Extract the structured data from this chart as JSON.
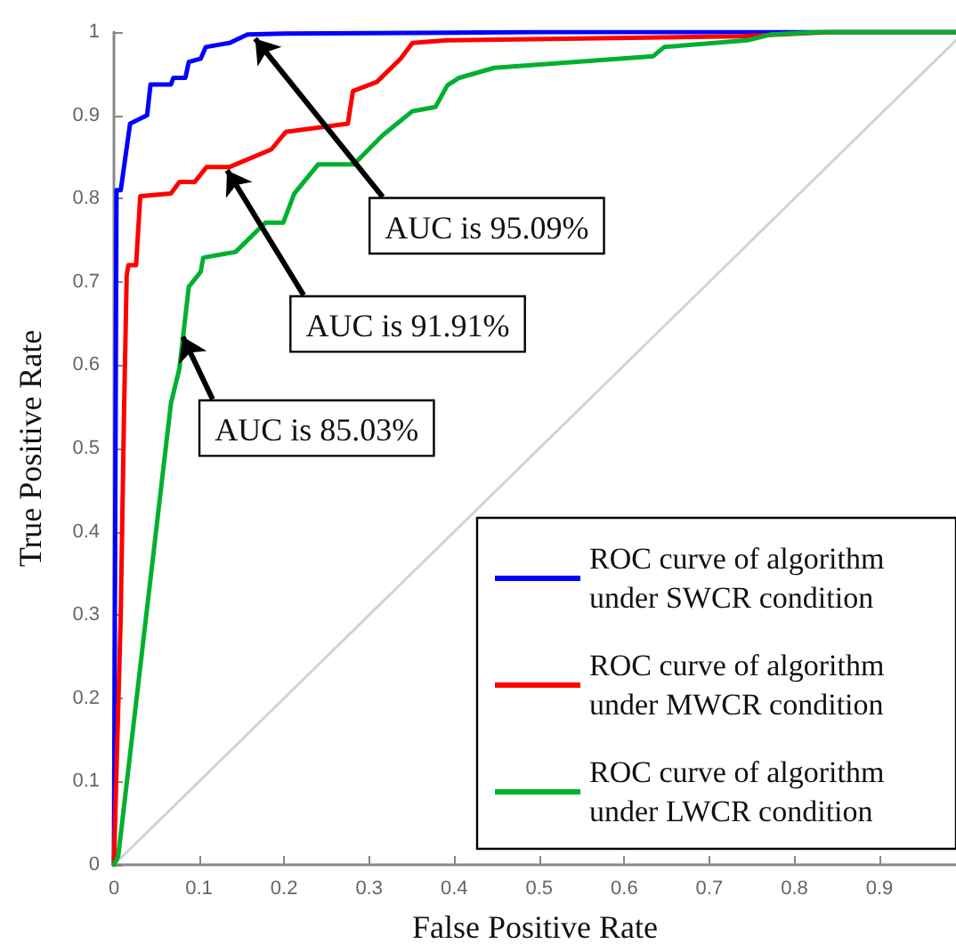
{
  "chart_data": {
    "type": "line",
    "xlabel": "False Positive Rate",
    "ylabel": "True Positive Rate",
    "xlim": [
      0,
      0.99
    ],
    "ylim": [
      0,
      1
    ],
    "xticks": [
      0,
      0.1,
      0.2,
      0.3,
      0.4,
      0.5,
      0.6,
      0.7,
      0.8,
      0.9
    ],
    "yticks": [
      0,
      0.1,
      0.2,
      0.3,
      0.4,
      0.5,
      0.6,
      0.7,
      0.8,
      0.9,
      1
    ],
    "grid": false,
    "legend": "bottom right",
    "marker": "none",
    "line_style": "solid",
    "series": [
      {
        "name": "ROC curve of algorithm under SWCR condition",
        "color": "#0000ff",
        "x": [
          0,
          0.003,
          0.008,
          0.019,
          0.039,
          0.043,
          0.067,
          0.07,
          0.084,
          0.088,
          0.102,
          0.108,
          0.136,
          0.157,
          0.2,
          0.5,
          0.99
        ],
        "values": [
          0,
          0.81,
          0.81,
          0.89,
          0.9,
          0.937,
          0.937,
          0.945,
          0.945,
          0.964,
          0.968,
          0.982,
          0.987,
          0.997,
          0.998,
          1,
          1
        ]
      },
      {
        "name": "ROC curve of algorithm under MWCR condition",
        "color": "#ff0000",
        "x": [
          0,
          0.008,
          0.012,
          0.015,
          0.017,
          0.026,
          0.031,
          0.067,
          0.077,
          0.095,
          0.109,
          0.136,
          0.185,
          0.202,
          0.275,
          0.281,
          0.309,
          0.337,
          0.351,
          0.392,
          0.738,
          0.842,
          0.99
        ],
        "values": [
          0,
          0.3,
          0.55,
          0.708,
          0.72,
          0.72,
          0.803,
          0.806,
          0.82,
          0.82,
          0.838,
          0.838,
          0.859,
          0.88,
          0.89,
          0.929,
          0.94,
          0.968,
          0.987,
          0.99,
          0.995,
          1,
          1
        ]
      },
      {
        "name": "ROC curve of algorithm under LWCR condition",
        "color": "#00b030",
        "x": [
          0,
          0.005,
          0.067,
          0.077,
          0.088,
          0.102,
          0.105,
          0.143,
          0.178,
          0.199,
          0.212,
          0.24,
          0.282,
          0.316,
          0.351,
          0.378,
          0.392,
          0.406,
          0.447,
          0.634,
          0.647,
          0.745,
          0.772,
          0.83,
          0.99
        ],
        "values": [
          0,
          0.01,
          0.554,
          0.596,
          0.694,
          0.712,
          0.729,
          0.736,
          0.771,
          0.771,
          0.806,
          0.841,
          0.841,
          0.876,
          0.905,
          0.91,
          0.936,
          0.945,
          0.957,
          0.971,
          0.982,
          0.99,
          0.997,
          1,
          1
        ]
      },
      {
        "color": "#d3d3d3",
        "x": [
          0,
          0.99
        ],
        "values": [
          0,
          0.99
        ]
      }
    ],
    "annotations": [
      {
        "text": "AUC is 95.09%",
        "x": 0.166,
        "y": 0.992
      },
      {
        "text": "AUC is 91.91%",
        "x": 0.133,
        "y": 0.834
      },
      {
        "text": "AUC is 85.03%",
        "x": 0.081,
        "y": 0.634
      }
    ]
  }
}
